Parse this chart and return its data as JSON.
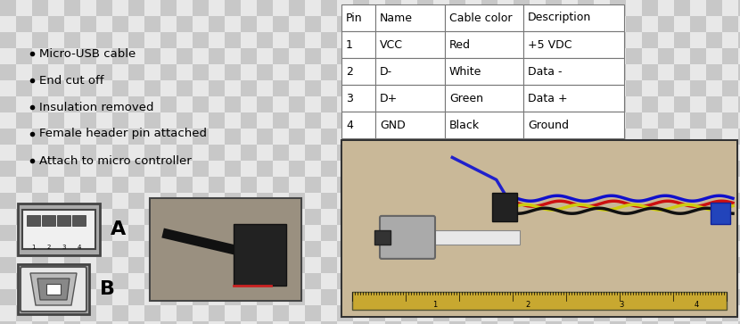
{
  "bullet_points": [
    "Micro-USB cable",
    "End cut off",
    "Insulation removed",
    "Female header pin attached",
    "Attach to micro controller"
  ],
  "table_headers": [
    "Pin",
    "Name",
    "Cable color",
    "Description"
  ],
  "table_rows": [
    [
      "1",
      "VCC",
      "Red",
      "+5 VDC"
    ],
    [
      "2",
      "D-",
      "White",
      "Data -"
    ],
    [
      "3",
      "D+",
      "Green",
      "Data +"
    ],
    [
      "4",
      "GND",
      "Black",
      "Ground"
    ]
  ],
  "checker_color1": "#c8c8c8",
  "checker_color2": "#e8e8e8",
  "checker_size": 18,
  "table_border": "#777777",
  "font_size_bullet": 9.5,
  "font_size_table": 9,
  "label_A": "A",
  "label_B": "B",
  "fig_width": 8.3,
  "fig_height": 3.63,
  "dpi": 100,
  "photo_bg": "#b8a898",
  "large_photo_bg": "#c8b89a",
  "photo_border": "#555555",
  "ruler_color": "#c8a830",
  "ruler_text": "#333333"
}
